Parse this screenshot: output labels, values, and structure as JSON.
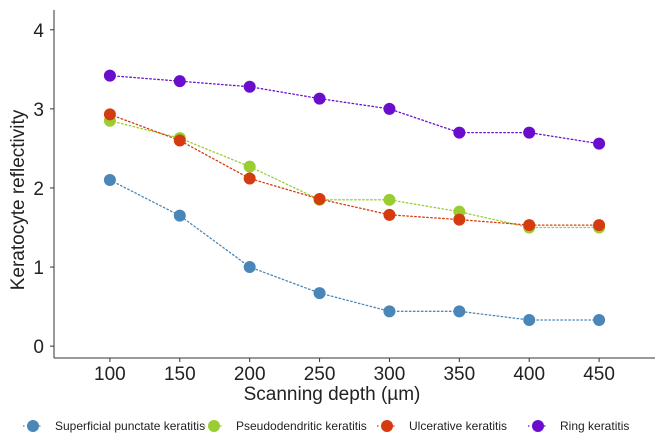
{
  "chart_data": {
    "type": "line",
    "title": "",
    "xlabel": "Scanning depth (µm)",
    "ylabel": "Keratocyte reflectivity",
    "x": [
      100,
      150,
      200,
      250,
      300,
      350,
      400,
      450
    ],
    "x_tick_labels": [
      "100",
      "150",
      "200",
      "250",
      "300",
      "350",
      "400",
      "450"
    ],
    "y_tick_labels": [
      "0",
      "1",
      "2",
      "3",
      "4"
    ],
    "y_ticks": [
      0,
      1,
      2,
      3,
      4
    ],
    "xlim": [
      60,
      490
    ],
    "ylim": [
      -0.15,
      4.25
    ],
    "grid": false,
    "legend_position": "bottom",
    "line_style": "dotted",
    "series": [
      {
        "name": "Superficial punctate keratitis",
        "color": "#4a86b8",
        "values": [
          2.1,
          1.65,
          1.0,
          0.67,
          0.44,
          0.44,
          0.33,
          0.33
        ]
      },
      {
        "name": "Pseudodendritic keratitis",
        "color": "#9acd32",
        "values": [
          2.85,
          2.63,
          2.27,
          1.85,
          1.85,
          1.7,
          1.5,
          1.5
        ]
      },
      {
        "name": "Ulcerative keratitis",
        "color": "#d43c0f",
        "values": [
          2.93,
          2.6,
          2.12,
          1.86,
          1.66,
          1.6,
          1.53,
          1.53
        ]
      },
      {
        "name": "Ring keratitis",
        "color": "#6a0dcc",
        "values": [
          3.42,
          3.35,
          3.28,
          3.13,
          3.0,
          2.7,
          2.7,
          2.56
        ]
      }
    ]
  }
}
